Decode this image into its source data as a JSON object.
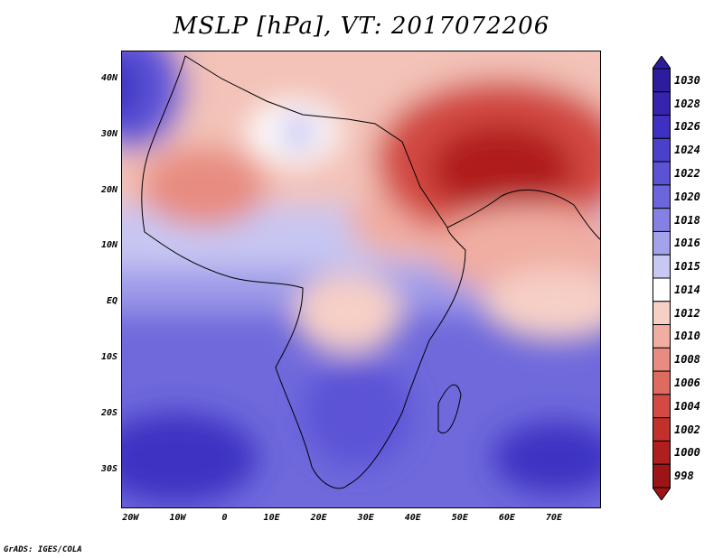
{
  "title": "MSLP [hPa], VT: 2017072206",
  "credit": "GrADS: IGES/COLA",
  "map": {
    "lon_range": [
      -22,
      80
    ],
    "lat_range": [
      -37,
      45
    ],
    "lat_labels": [
      {
        "lat": 40,
        "text": "40N"
      },
      {
        "lat": 30,
        "text": "30N"
      },
      {
        "lat": 20,
        "text": "20N"
      },
      {
        "lat": 10,
        "text": "10N"
      },
      {
        "lat": 0,
        "text": "EQ"
      },
      {
        "lat": -10,
        "text": "10S"
      },
      {
        "lat": -20,
        "text": "20S"
      },
      {
        "lat": -30,
        "text": "30S"
      }
    ],
    "lon_labels": [
      {
        "lon": -20,
        "text": "20W"
      },
      {
        "lon": -10,
        "text": "10W"
      },
      {
        "lon": 0,
        "text": "0"
      },
      {
        "lon": 10,
        "text": "10E"
      },
      {
        "lon": 20,
        "text": "20E"
      },
      {
        "lon": 30,
        "text": "30E"
      },
      {
        "lon": 40,
        "text": "40E"
      },
      {
        "lon": 50,
        "text": "50E"
      },
      {
        "lon": 60,
        "text": "60E"
      },
      {
        "lon": 70,
        "text": "70E"
      }
    ]
  },
  "colorbar": {
    "levels": [
      "1030",
      "1028",
      "1026",
      "1024",
      "1022",
      "1020",
      "1018",
      "1016",
      "1015",
      "1014",
      "1012",
      "1010",
      "1008",
      "1006",
      "1004",
      "1002",
      "1000",
      "998"
    ],
    "colors": [
      "#2c1d9e",
      "#3524b0",
      "#3d30c2",
      "#4b40cc",
      "#5b52d6",
      "#6c66dc",
      "#8680e2",
      "#a4a2ea",
      "#c8c8f4",
      "#ffffff",
      "#f6cfc6",
      "#f0ada2",
      "#e88c80",
      "#de6b60",
      "#d24a43",
      "#c2302c",
      "#b01f1f",
      "#9c1414"
    ]
  }
}
